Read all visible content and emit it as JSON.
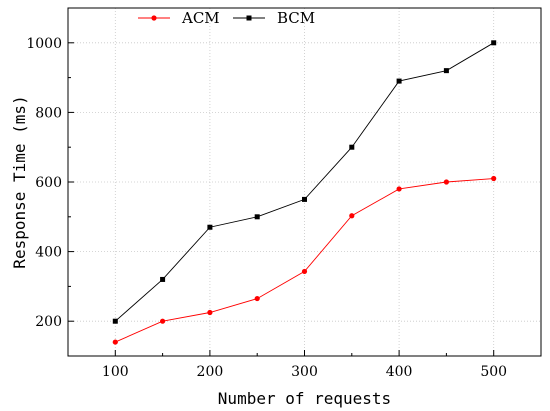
{
  "chart_data": {
    "type": "line",
    "title": "",
    "xlabel": "Number of requests",
    "ylabel": "Response Time (ms)",
    "x": [
      100,
      150,
      200,
      250,
      300,
      350,
      400,
      450,
      500
    ],
    "xlim": [
      50,
      550
    ],
    "ylim": [
      100,
      1100
    ],
    "xticks": [
      100,
      200,
      300,
      400,
      500
    ],
    "yticks": [
      200,
      400,
      600,
      800,
      1000
    ],
    "grid": true,
    "legend_position": "top",
    "series": [
      {
        "name": "ACM",
        "color": "#ff0000",
        "marker": "circle",
        "values": [
          140,
          200,
          225,
          265,
          343,
          503,
          580,
          600,
          610
        ]
      },
      {
        "name": "BCM",
        "color": "#000000",
        "marker": "square",
        "values": [
          200,
          320,
          470,
          500,
          550,
          700,
          890,
          920,
          1000
        ]
      }
    ]
  }
}
